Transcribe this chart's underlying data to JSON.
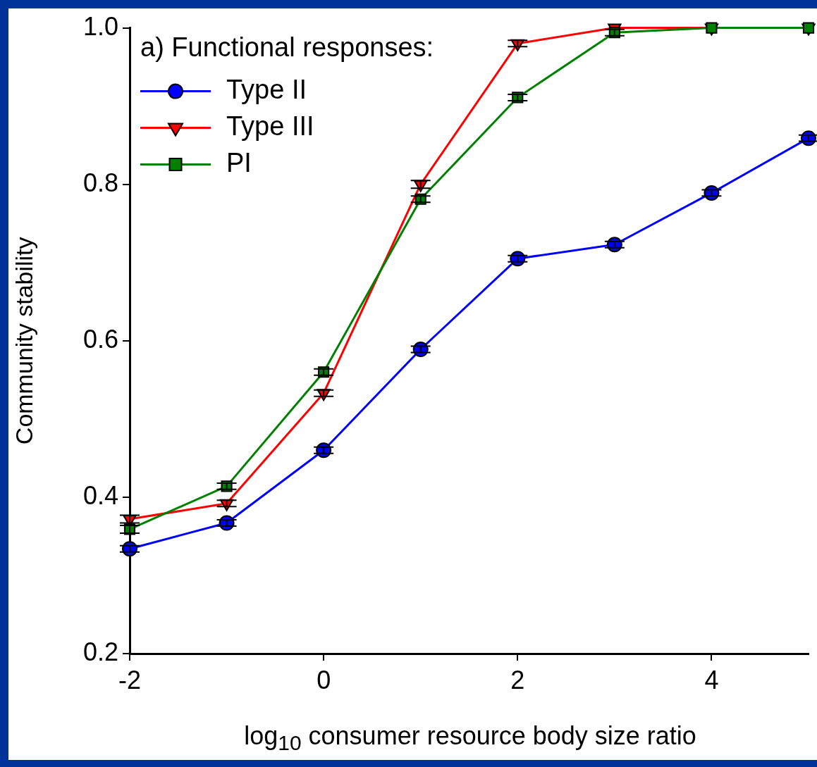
{
  "chart_data": {
    "type": "line",
    "legend_title": "a) Functional responses:",
    "xlabel": "log$_{10}$ consumer resource body size ratio",
    "ylabel": "Community stability",
    "x": [
      -2,
      -1,
      0,
      1,
      2,
      3,
      4,
      5
    ],
    "xlim": [
      -2,
      5
    ],
    "xticks": [
      -2,
      0,
      2,
      4
    ],
    "ylim": [
      0.2,
      1.0
    ],
    "yticks": [
      0.2,
      0.4,
      0.6,
      0.8,
      {
        "value": 1.0,
        "label": "1.0"
      }
    ],
    "grid": false,
    "legend": "top left",
    "line_style": "solid",
    "series": [
      {
        "name": "Type II",
        "color": "#0000ff",
        "marker": "circle",
        "values": [
          0.334,
          0.367,
          0.46,
          0.589,
          0.705,
          0.723,
          0.789,
          0.859
        ],
        "errors": [
          0.004,
          0.004,
          0.004,
          0.004,
          0.004,
          0.004,
          0.004,
          0.004
        ]
      },
      {
        "name": "Type III",
        "color": "#ff0000",
        "marker": "triangle",
        "values": [
          0.372,
          0.392,
          0.533,
          0.8,
          0.98,
          1.0,
          1.0,
          1.0
        ],
        "errors": [
          0.005,
          0.004,
          0.004,
          0.005,
          0.004,
          null,
          null,
          null
        ]
      },
      {
        "name": "PI",
        "color": "#008000",
        "marker": "square",
        "values": [
          0.359,
          0.414,
          0.56,
          0.781,
          0.911,
          0.994,
          1.0,
          1.0
        ],
        "errors": [
          0.005,
          0.004,
          0.004,
          0.004,
          0.004,
          0.004,
          null,
          null
        ]
      }
    ]
  }
}
